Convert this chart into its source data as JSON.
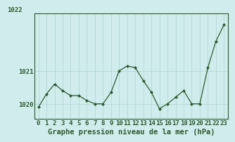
{
  "x": [
    0,
    1,
    2,
    3,
    4,
    5,
    6,
    7,
    8,
    9,
    10,
    11,
    12,
    13,
    14,
    15,
    16,
    17,
    18,
    19,
    20,
    21,
    22,
    23
  ],
  "y": [
    1019.9,
    1020.3,
    1020.6,
    1020.4,
    1020.25,
    1020.25,
    1020.1,
    1020.0,
    1020.0,
    1020.35,
    1021.0,
    1021.15,
    1021.1,
    1020.7,
    1020.35,
    1019.85,
    1020.0,
    1020.2,
    1020.4,
    1020.0,
    1020.0,
    1021.1,
    1021.9,
    1022.4
  ],
  "line_color": "#2d5a2d",
  "marker": "D",
  "marker_size": 2.5,
  "bg_color": "#d0ecec",
  "plot_bg_color": "#d0ecec",
  "grid_color": "#b0d4d4",
  "axis_color": "#2d5a2d",
  "xlabel": "Graphe pression niveau de la mer (hPa)",
  "ylabel_ticks": [
    1020,
    1021
  ],
  "ylim": [
    1019.55,
    1022.75
  ],
  "xlim": [
    -0.5,
    23.5
  ],
  "xlabel_fontsize": 7.5,
  "tick_fontsize": 6.5,
  "top_label": "1022"
}
